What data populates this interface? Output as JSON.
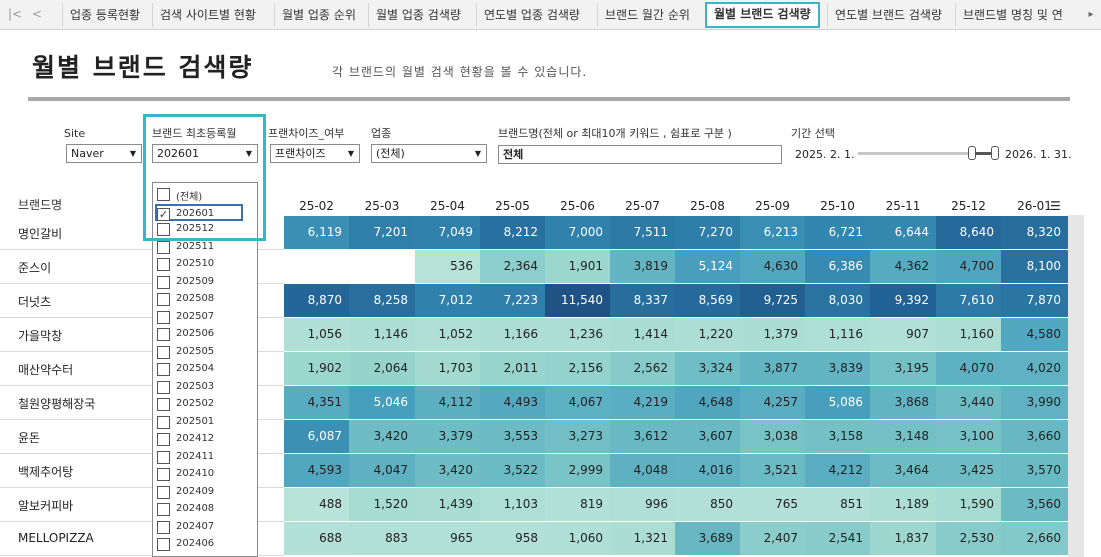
{
  "tabs": {
    "nav_prev": "|<",
    "nav_back": "<",
    "items": [
      "업종 등록현황",
      "검색 사이트별 현황",
      "월별 업종 순위",
      "월별 업종 검색량",
      "연도별 업종 검색량",
      "브랜드 월간 순위",
      "월별 브랜드 검색량",
      "연도별 브랜드 검색량",
      "브랜드별 명칭 및 연"
    ],
    "active_index": 6,
    "scroll_right": "▸"
  },
  "header": {
    "title": "월별 브랜드 검색량",
    "subtitle": "각 브랜드의 월별 검색 현황을 볼 수 있습니다."
  },
  "filters": {
    "site_label": "Site",
    "site_value": "Naver",
    "first_reg_label": "브랜드 최초등록월",
    "first_reg_value": "202601",
    "franchise_label": "프랜차이즈_여부",
    "franchise_value": "프랜차이즈",
    "industry_label": "업종",
    "industry_value": "(전체)",
    "brand_label": "브랜드명(전체 or 최대10개 키워드 , 쉼표로 구분 )",
    "brand_value": "전체",
    "period_label": "기간 선택",
    "period_start": "2025. 2. 1.",
    "period_end": "2026. 1. 31."
  },
  "dropdown_options": [
    {
      "label": "(전체)",
      "checked": false
    },
    {
      "label": "202601",
      "checked": true
    },
    {
      "label": "202512",
      "checked": false
    },
    {
      "label": "202511",
      "checked": false
    },
    {
      "label": "202510",
      "checked": false
    },
    {
      "label": "202509",
      "checked": false
    },
    {
      "label": "202508",
      "checked": false
    },
    {
      "label": "202507",
      "checked": false
    },
    {
      "label": "202506",
      "checked": false
    },
    {
      "label": "202505",
      "checked": false
    },
    {
      "label": "202504",
      "checked": false
    },
    {
      "label": "202503",
      "checked": false
    },
    {
      "label": "202502",
      "checked": false
    },
    {
      "label": "202501",
      "checked": false
    },
    {
      "label": "202412",
      "checked": false
    },
    {
      "label": "202411",
      "checked": false
    },
    {
      "label": "202410",
      "checked": false
    },
    {
      "label": "202409",
      "checked": false
    },
    {
      "label": "202408",
      "checked": false
    },
    {
      "label": "202407",
      "checked": false
    },
    {
      "label": "202406",
      "checked": false
    }
  ],
  "table": {
    "brand_col_header": "브랜드명",
    "months": [
      "25-02",
      "25-03",
      "25-04",
      "25-05",
      "25-06",
      "25-07",
      "25-08",
      "25-09",
      "25-10",
      "25-11",
      "25-12",
      "26-01"
    ],
    "sort_icon": "sort-desc-icon",
    "rows": [
      {
        "brand": "명인갈비",
        "values": [
          "6,119",
          "7,201",
          "7,049",
          "8,212",
          "7,000",
          "7,511",
          "7,270",
          "6,213",
          "6,721",
          "6,644",
          "8,640",
          "8,320"
        ]
      },
      {
        "brand": "준스이",
        "values": [
          "",
          "",
          "536",
          "2,364",
          "1,901",
          "3,819",
          "5,124",
          "4,630",
          "6,386",
          "4,362",
          "4,700",
          "8,100"
        ]
      },
      {
        "brand": "더넛츠",
        "values": [
          "8,870",
          "8,258",
          "7,012",
          "7,223",
          "11,540",
          "8,337",
          "8,569",
          "9,725",
          "8,030",
          "9,392",
          "7,610",
          "7,870"
        ]
      },
      {
        "brand": "가을막창",
        "values": [
          "1,056",
          "1,146",
          "1,052",
          "1,166",
          "1,236",
          "1,414",
          "1,220",
          "1,379",
          "1,116",
          "907",
          "1,160",
          "4,580"
        ]
      },
      {
        "brand": "매산약수터",
        "values": [
          "1,902",
          "2,064",
          "1,703",
          "2,011",
          "2,156",
          "2,562",
          "3,324",
          "3,877",
          "3,839",
          "3,195",
          "4,070",
          "4,020"
        ]
      },
      {
        "brand": "철원양평해장국",
        "values": [
          "4,351",
          "5,046",
          "4,112",
          "4,493",
          "4,067",
          "4,219",
          "4,648",
          "4,257",
          "5,086",
          "3,868",
          "3,440",
          "3,990"
        ]
      },
      {
        "brand": "윤돈",
        "values": [
          "6,087",
          "3,420",
          "3,379",
          "3,553",
          "3,273",
          "3,612",
          "3,607",
          "3,038",
          "3,158",
          "3,148",
          "3,100",
          "3,660"
        ]
      },
      {
        "brand": "백제추어탕",
        "values": [
          "4,593",
          "4,047",
          "3,420",
          "3,522",
          "2,999",
          "4,048",
          "4,016",
          "3,521",
          "4,212",
          "3,464",
          "3,425",
          "3,570"
        ]
      },
      {
        "brand": "알보커피바",
        "values": [
          "488",
          "1,520",
          "1,439",
          "1,103",
          "819",
          "996",
          "850",
          "765",
          "851",
          "1,189",
          "1,590",
          "3,560"
        ]
      },
      {
        "brand": "MELLOPIZZA",
        "values": [
          "688",
          "883",
          "965",
          "958",
          "1,060",
          "1,321",
          "3,689",
          "2,407",
          "2,541",
          "1,837",
          "2,530",
          "2,660"
        ]
      }
    ]
  },
  "colors": {
    "highlight": "#3bb4c6",
    "heat_low": "#bfe6dc",
    "heat_high": "#1d5f8a"
  }
}
